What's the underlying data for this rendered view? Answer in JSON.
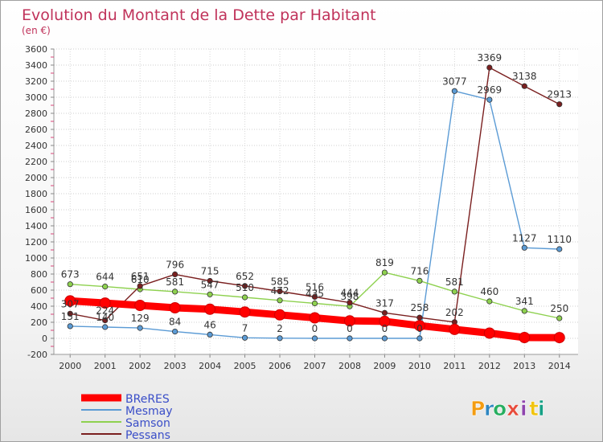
{
  "chart_data": {
    "type": "line",
    "title": "Evolution du Montant de la Dette par Habitant",
    "subtitle": "(en €)",
    "x": [
      "2000",
      "2001",
      "2002",
      "2003",
      "2004",
      "2005",
      "2006",
      "2007",
      "2008",
      "2009",
      "2010",
      "2011",
      "2012",
      "2013",
      "2014"
    ],
    "yticks": [
      -200,
      0,
      200,
      400,
      600,
      800,
      1000,
      1200,
      1400,
      1600,
      1800,
      2000,
      2200,
      2400,
      2600,
      2800,
      3000,
      3200,
      3400,
      3600
    ],
    "ylim": [
      -200,
      3600
    ],
    "grid": true,
    "legend_position": "bottom-left",
    "series": [
      {
        "name": "BReRES",
        "color": "#ff0000",
        "labels": false,
        "values": [
          466,
          439,
          410,
          380,
          362,
          328,
          292,
          255,
          217,
          211,
          158,
          111,
          65,
          10,
          9
        ]
      },
      {
        "name": "Mesmay",
        "color": "#5b9bd5",
        "labels": true,
        "values": [
          151,
          140,
          129,
          84,
          46,
          7,
          2,
          0,
          0,
          0,
          0,
          3077,
          2969,
          1127,
          1110
        ],
        "display": [
          "151",
          "140",
          "129",
          "84",
          "46",
          "7",
          "2",
          "0",
          "0",
          "0",
          "0",
          "3077",
          "2969",
          "1127",
          "1110"
        ]
      },
      {
        "name": "Samson",
        "color": "#8ed14f",
        "labels": true,
        "values": [
          673,
          644,
          610,
          581,
          547,
          510,
          472,
          435,
          398,
          819,
          716,
          581,
          460,
          341,
          250
        ],
        "display": [
          "673",
          "644",
          "610",
          "581",
          "547",
          "510",
          "472",
          "435",
          "398",
          "819",
          "716",
          "581",
          "460",
          "341",
          "250"
        ]
      },
      {
        "name": "Pessans",
        "color": "#7a1f1f",
        "labels": true,
        "values": [
          307,
          224,
          651,
          796,
          715,
          652,
          585,
          516,
          444,
          317,
          258,
          202,
          3369,
          3138,
          2913
        ],
        "display": [
          "307",
          "224",
          "651",
          "796",
          "715",
          "652",
          "585",
          "516",
          "444",
          "317",
          "258",
          "202",
          "3369",
          "3138",
          "2913"
        ]
      }
    ]
  },
  "brand": {
    "letters": [
      "P",
      "r",
      "o",
      "x",
      "i",
      "t",
      "i"
    ],
    "colors": [
      "#f39c12",
      "#2e86c1",
      "#27ae60",
      "#e74c3c",
      "#8e44ad",
      "#f1c40f",
      "#16a085"
    ]
  }
}
